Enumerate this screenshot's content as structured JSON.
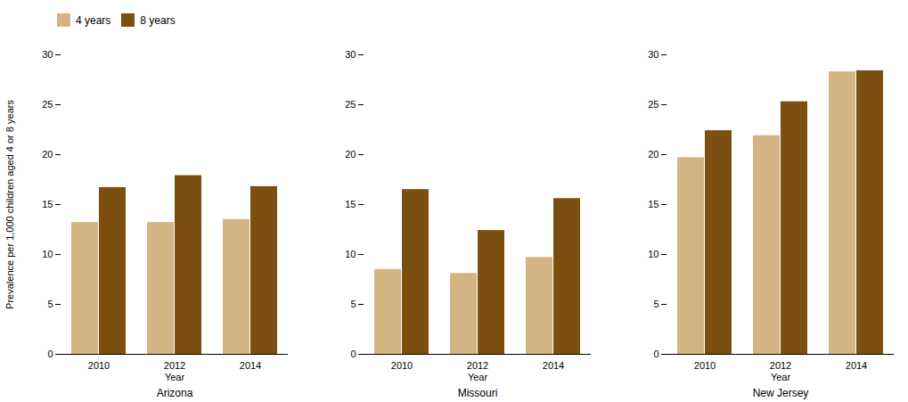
{
  "chart_data": {
    "type": "bar",
    "ylabel": "Prevalence per 1,000 children aged 4 or 8 years",
    "xlabel": "Year",
    "groups": [
      "Arizona",
      "Missouri",
      "New Jersey"
    ],
    "categories": [
      "2010",
      "2012",
      "2014",
      "2010",
      "2012",
      "2014",
      "2010",
      "2012",
      "2014"
    ],
    "series": [
      {
        "name": "4 years",
        "color": "#D4B483",
        "values": [
          13.2,
          13.2,
          13.5,
          8.5,
          8.1,
          9.7,
          19.7,
          21.9,
          28.3
        ]
      },
      {
        "name": "8 years",
        "color": "#7B4F10",
        "values": [
          16.7,
          17.9,
          16.8,
          16.5,
          12.4,
          15.6,
          22.4,
          25.3,
          28.4
        ]
      }
    ],
    "ylim": [
      0,
      30
    ],
    "yticks": [
      0,
      5,
      10,
      15,
      20,
      25,
      30
    ],
    "legend": "upper left"
  }
}
